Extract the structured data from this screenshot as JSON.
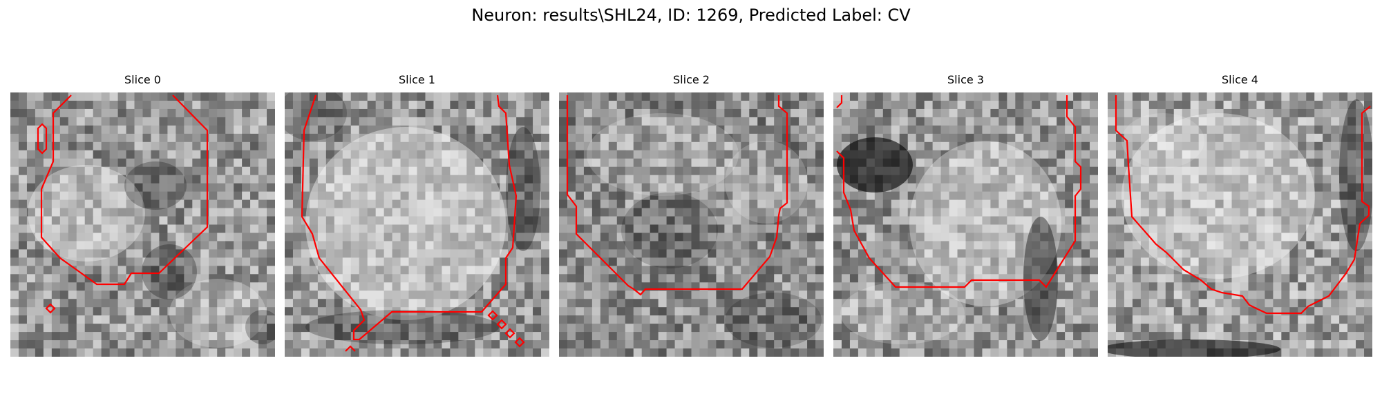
{
  "figure": {
    "title": "Neuron: results\\SHL24, ID: 1269, Predicted Label: CV",
    "contour_color": "#ff0000"
  },
  "panels": [
    {
      "title": "Slice 0"
    },
    {
      "title": "Slice 1"
    },
    {
      "title": "Slice 2"
    },
    {
      "title": "Slice 3"
    },
    {
      "title": "Slice 4"
    }
  ]
}
